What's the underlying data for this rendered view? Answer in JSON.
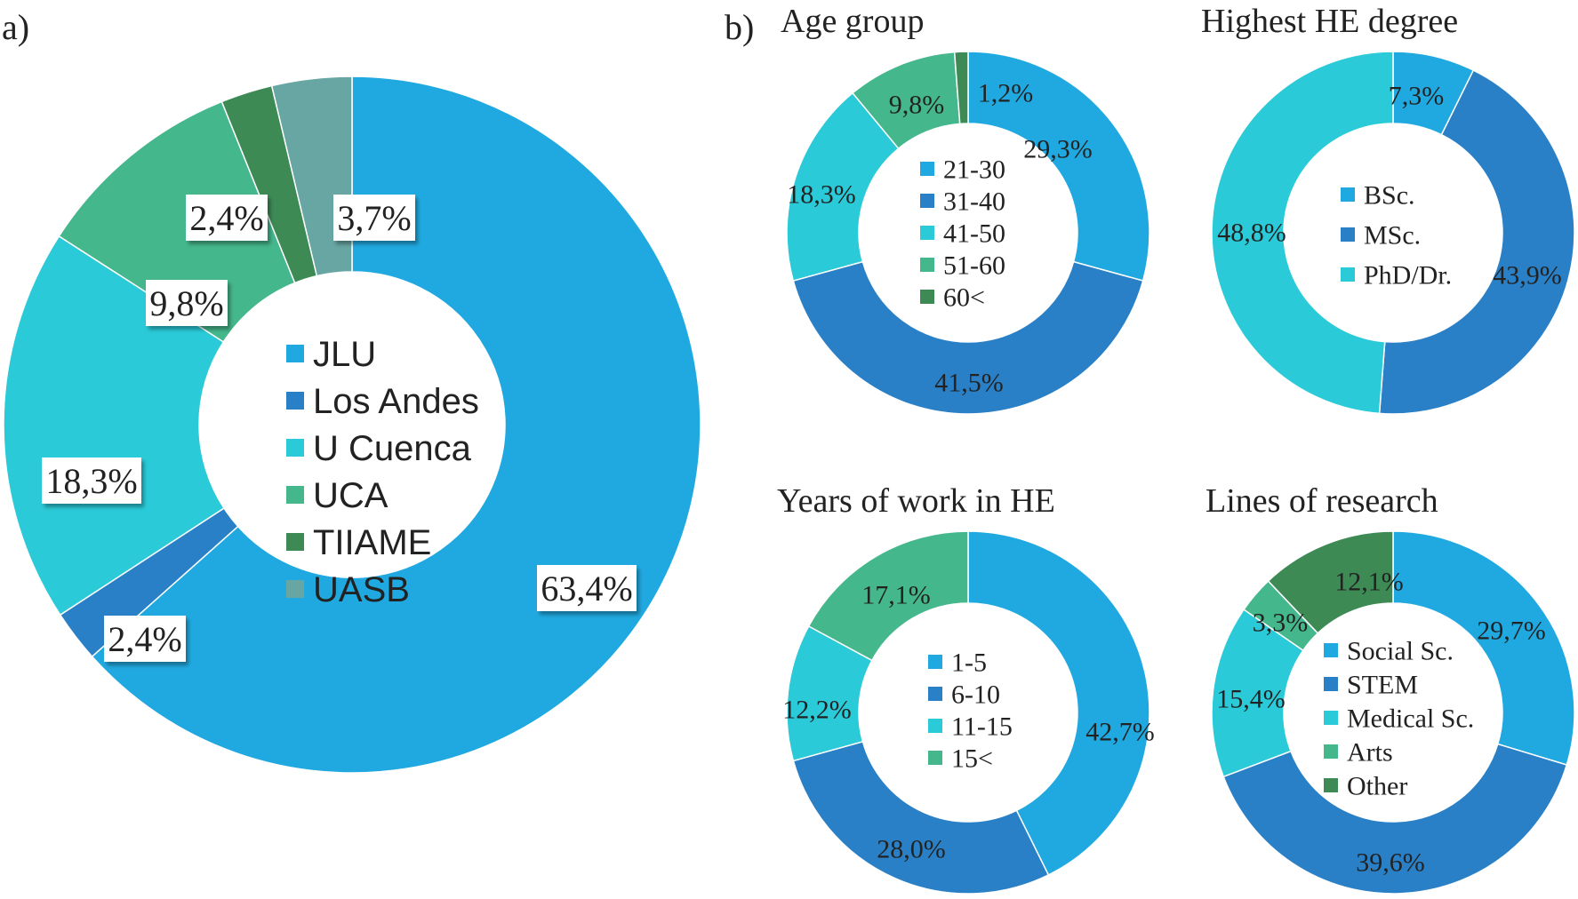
{
  "panel_labels": {
    "a": "a)",
    "b": "b)"
  },
  "colors": {
    "c1": "#20A9E0",
    "c2": "#2A80C6",
    "c3": "#2ACAD8",
    "c4": "#45B78C",
    "c5": "#3D8A55",
    "c6": "#67A6A3"
  },
  "chart_data": [
    {
      "id": "universities",
      "type": "pie",
      "title": "",
      "categories": [
        "JLU",
        "Los Andes",
        "U Cuenca",
        "UCA",
        "TIIAME",
        "UASB"
      ],
      "values": [
        63.4,
        2.4,
        18.3,
        9.8,
        2.4,
        3.7
      ],
      "labels": [
        "63,4%",
        "2,4%",
        "18,3%",
        "9,8%",
        "2,4%",
        "3,7%"
      ],
      "legend": "center"
    },
    {
      "id": "age",
      "type": "pie",
      "title": "Age group",
      "categories": [
        "21-30",
        "31-40",
        "41-50",
        "51-60",
        "60<"
      ],
      "values": [
        29.3,
        41.5,
        18.3,
        9.8,
        1.2
      ],
      "labels": [
        "29,3%",
        "41,5%",
        "18,3%",
        "9,8%",
        "1,2%"
      ],
      "legend": "center"
    },
    {
      "id": "degree",
      "type": "pie",
      "title": "Highest HE degree",
      "categories": [
        "BSc.",
        "MSc.",
        "PhD/Dr."
      ],
      "values": [
        7.3,
        43.9,
        48.8
      ],
      "labels": [
        "7,3%",
        "43,9%",
        "48,8%"
      ],
      "legend": "center"
    },
    {
      "id": "years",
      "type": "pie",
      "title": "Years of work in HE",
      "categories": [
        "1-5",
        "6-10",
        "11-15",
        "15<"
      ],
      "values": [
        42.7,
        28.0,
        12.2,
        17.1
      ],
      "labels": [
        "42,7%",
        "28,0%",
        "12,2%",
        "17,1%"
      ],
      "legend": "center"
    },
    {
      "id": "research",
      "type": "pie",
      "title": "Lines of research",
      "categories": [
        "Social Sc.",
        "STEM",
        "Medical Sc.",
        "Arts",
        "Other"
      ],
      "values": [
        29.7,
        39.6,
        15.4,
        3.3,
        12.1
      ],
      "labels": [
        "29,7%",
        "39,6%",
        "15,4%",
        "3,3%",
        "12,1%"
      ],
      "legend": "center"
    }
  ]
}
